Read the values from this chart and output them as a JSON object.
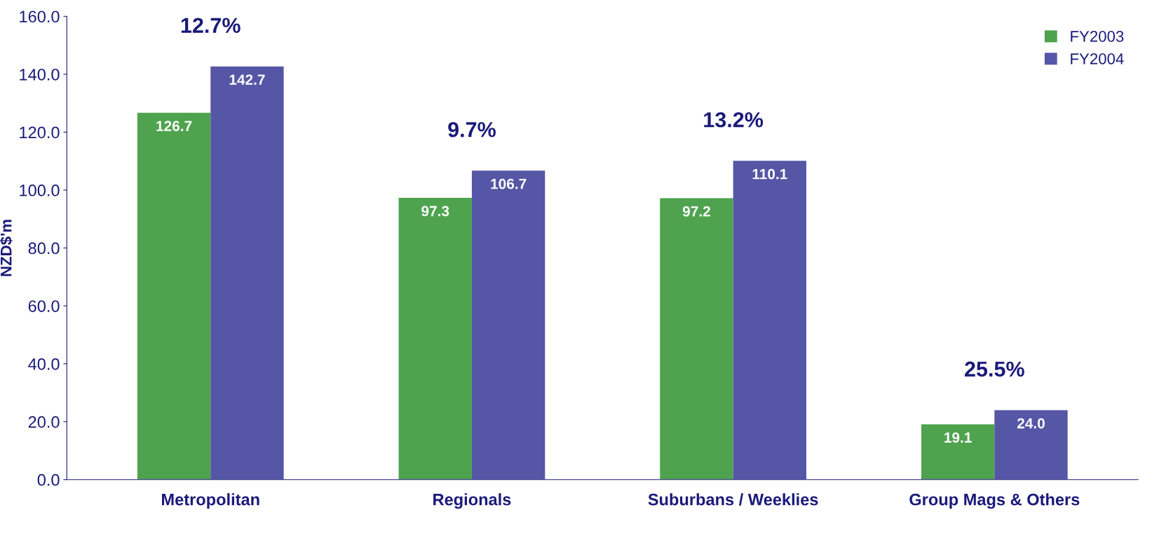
{
  "chart_data": {
    "type": "bar",
    "ylabel": "NZD$'m",
    "categories": [
      "Metropolitan",
      "Regionals",
      "Suburbans / Weeklies",
      "Group Mags & Others"
    ],
    "series": [
      {
        "name": "FY2003",
        "color": "#4fa34f",
        "values": [
          126.7,
          97.3,
          97.2,
          19.1
        ],
        "value_labels": [
          "126.7",
          "97.3",
          "97.2",
          "19.1"
        ]
      },
      {
        "name": "FY2004",
        "color": "#5656a6",
        "values": [
          142.7,
          106.7,
          110.1,
          24.0
        ],
        "value_labels": [
          "142.7",
          "106.7",
          "110.1",
          "24.0"
        ]
      }
    ],
    "annotations": [
      "12.7%",
      "9.7%",
      "13.2%",
      "25.5%"
    ],
    "ylim": [
      0,
      160
    ],
    "yticks": [
      {
        "value": 0,
        "label": "0.0"
      },
      {
        "value": 20,
        "label": "20.0"
      },
      {
        "value": 40,
        "label": "40.0"
      },
      {
        "value": 60,
        "label": "60.0"
      },
      {
        "value": 80,
        "label": "80.0"
      },
      {
        "value": 100,
        "label": "100.0"
      },
      {
        "value": 120,
        "label": "120.0"
      },
      {
        "value": 140,
        "label": "140.0"
      },
      {
        "value": 160,
        "label": "160.0"
      }
    ],
    "grid": false,
    "legend": "top right"
  }
}
